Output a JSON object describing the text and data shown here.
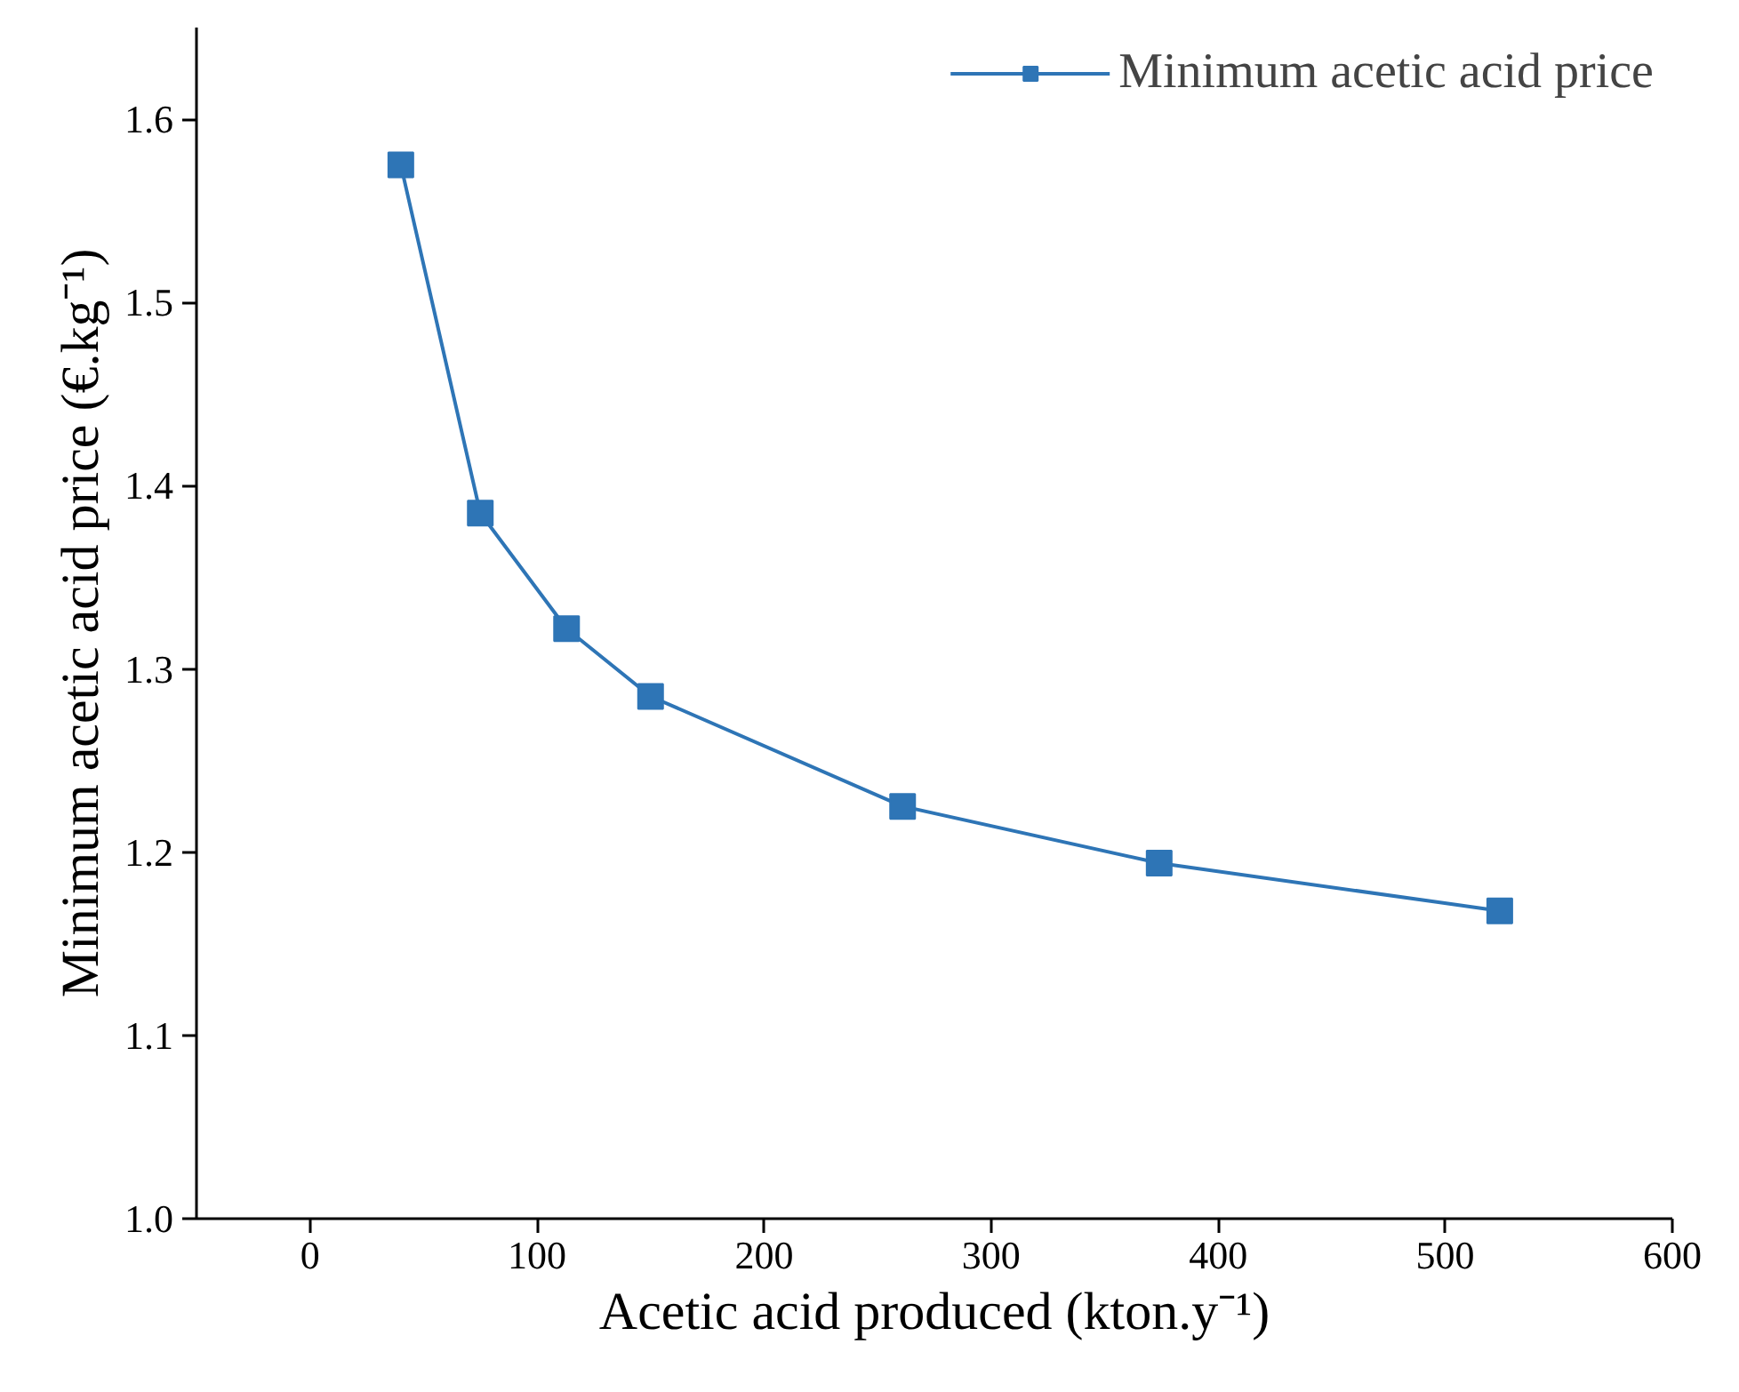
{
  "chart_data": {
    "type": "line",
    "xlabel": "Acetic acid produced (kton.y⁻¹)",
    "ylabel": "Minimum acetic acid price (€.kg⁻¹)",
    "x": [
      40,
      75,
      113,
      150,
      261,
      374,
      524
    ],
    "series": [
      {
        "name": "Minimum acetic acid price",
        "color": "#2e75b6",
        "values": [
          1.575,
          1.385,
          1.322,
          1.285,
          1.225,
          1.194,
          1.168
        ]
      }
    ],
    "xlim": [
      -50,
      600
    ],
    "xticks": [
      0,
      100,
      200,
      300,
      400,
      500,
      600
    ],
    "ylim": [
      1.0,
      1.65
    ],
    "yticks": [
      {
        "value": 1.0,
        "label": "1.0"
      },
      1.1,
      1.2,
      1.3,
      1.4,
      1.5,
      1.6
    ],
    "grid": false,
    "legend": "top right",
    "marker": "square",
    "line_style": "solid"
  }
}
